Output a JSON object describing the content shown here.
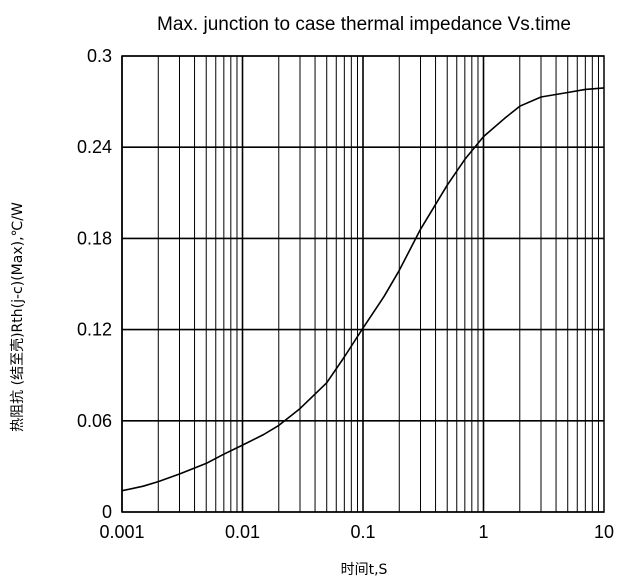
{
  "chart_data": {
    "type": "line",
    "title": "Max. junction to case thermal impedance Vs.time",
    "xlabel": "时间t,S",
    "ylabel": "热阻抗 (结至壳)Rth(j-c)(Max),℃/W",
    "x_scale": "log",
    "xlim": [
      0.001,
      10
    ],
    "ylim": [
      0,
      0.3
    ],
    "x_ticks": [
      0.001,
      0.01,
      0.1,
      1,
      10
    ],
    "x_tick_labels": [
      "0.001",
      "0.01",
      "0.1",
      "1",
      "10"
    ],
    "y_ticks": [
      0,
      0.06,
      0.12,
      0.18,
      0.24,
      0.3
    ],
    "y_tick_labels": [
      "0",
      "0.06",
      "0.12",
      "0.18",
      "0.24",
      "0.3"
    ],
    "grid": true,
    "series": [
      {
        "x": [
          0.001,
          0.0015,
          0.002,
          0.003,
          0.005,
          0.007,
          0.01,
          0.015,
          0.02,
          0.03,
          0.05,
          0.07,
          0.1,
          0.15,
          0.2,
          0.3,
          0.5,
          0.7,
          1,
          1.5,
          2,
          3,
          5,
          7,
          10
        ],
        "y": [
          0.014,
          0.017,
          0.02,
          0.025,
          0.032,
          0.038,
          0.044,
          0.051,
          0.057,
          0.068,
          0.085,
          0.102,
          0.121,
          0.142,
          0.159,
          0.186,
          0.215,
          0.232,
          0.247,
          0.259,
          0.267,
          0.273,
          0.276,
          0.278,
          0.279
        ]
      }
    ]
  },
  "colors": {
    "line": "#000000",
    "grid": "#000000",
    "background": "#ffffff"
  }
}
